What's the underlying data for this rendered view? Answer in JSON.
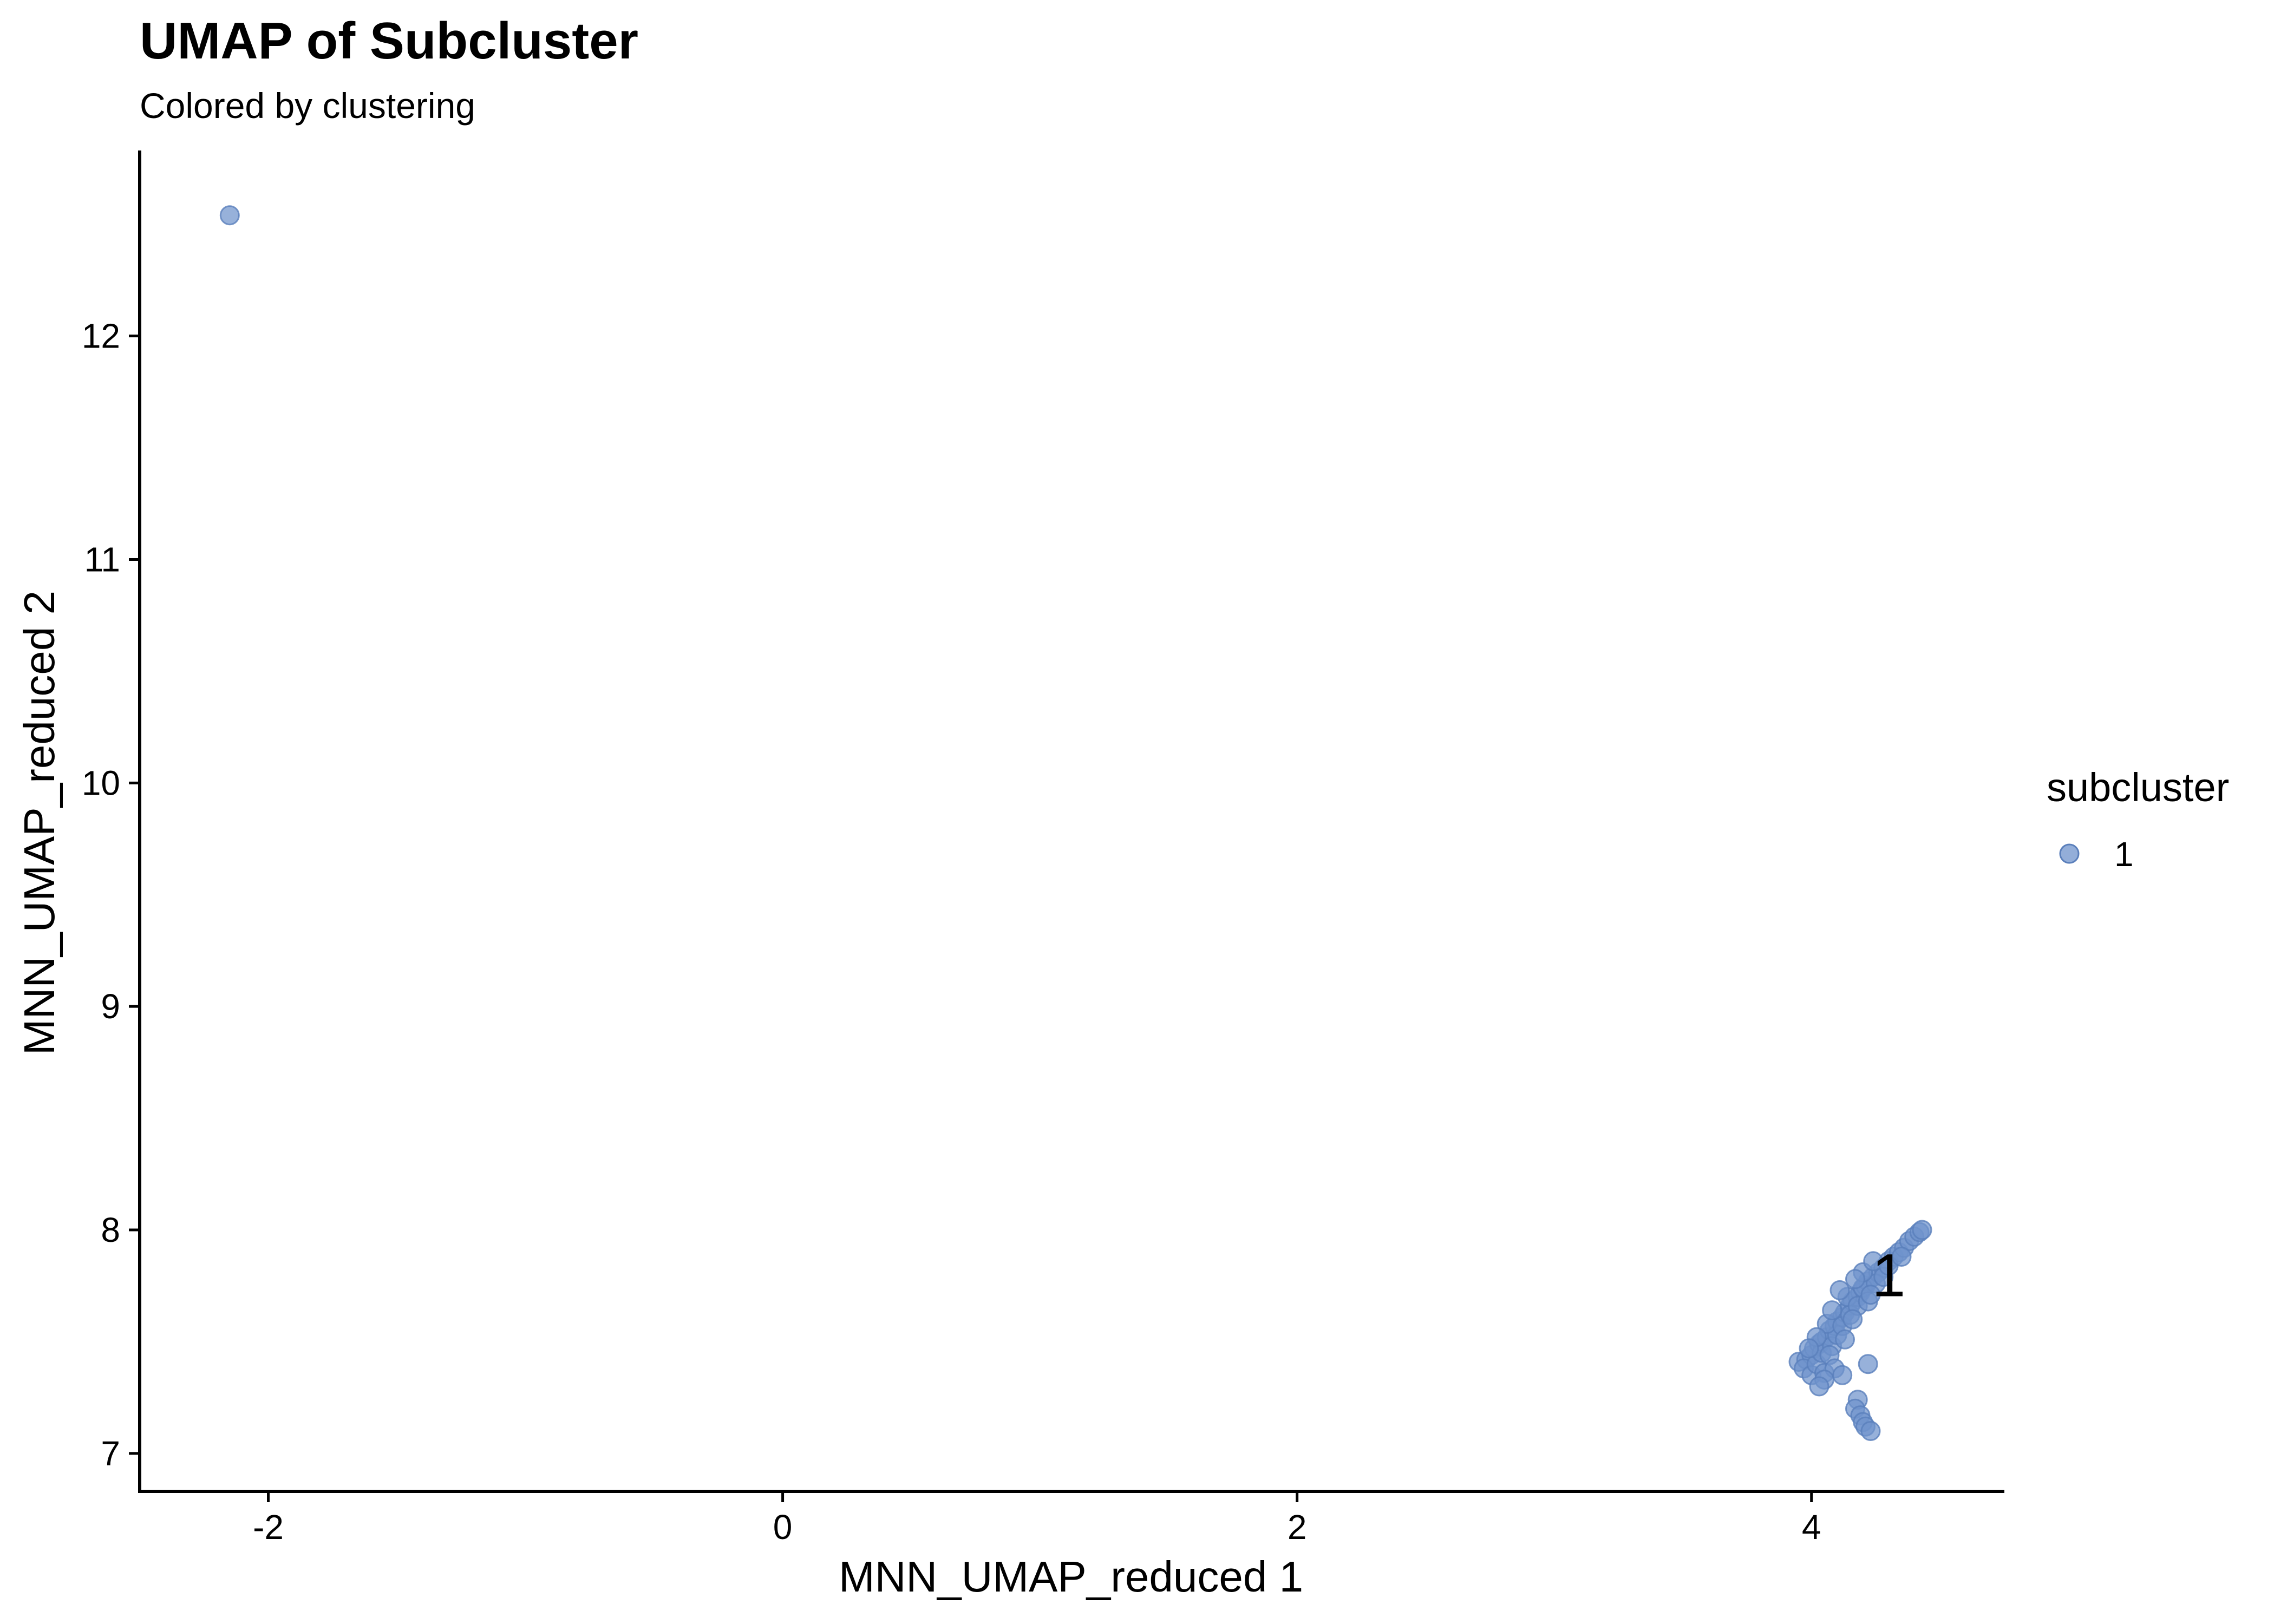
{
  "chart_data": {
    "type": "scatter",
    "title": "UMAP of Subcluster",
    "subtitle": "Colored by clustering",
    "xlabel": "MNN_UMAP_reduced 1",
    "ylabel": "MNN_UMAP_reduced 2",
    "xlim": [
      -2.5,
      4.75
    ],
    "ylim": [
      6.83,
      12.83
    ],
    "x_ticks": [
      -2,
      0,
      2,
      4
    ],
    "x_tick_labels": [
      "-2",
      "0",
      "2",
      "4"
    ],
    "y_ticks": [
      7,
      8,
      9,
      10,
      11,
      12
    ],
    "y_tick_labels": [
      "7",
      "8",
      "9",
      "10",
      "11",
      "12"
    ],
    "grid": false,
    "legend": {
      "title": "subcluster",
      "position": "right",
      "entries": [
        {
          "label": "1",
          "color": "#6f93cc"
        }
      ]
    },
    "cluster_labels": [
      {
        "text": "1",
        "x": 4.3,
        "y": 7.8
      }
    ],
    "series": [
      {
        "color": "#6f93cc",
        "points": [
          [
            -2.15,
            12.54
          ],
          [
            3.95,
            7.41
          ],
          [
            3.98,
            7.42
          ],
          [
            4.0,
            7.44
          ],
          [
            4.01,
            7.47
          ],
          [
            4.03,
            7.49
          ],
          [
            4.04,
            7.5
          ],
          [
            4.06,
            7.52
          ],
          [
            4.07,
            7.55
          ],
          [
            4.09,
            7.57
          ],
          [
            4.1,
            7.59
          ],
          [
            4.12,
            7.61
          ],
          [
            4.13,
            7.63
          ],
          [
            4.15,
            7.66
          ],
          [
            4.16,
            7.68
          ],
          [
            4.18,
            7.7
          ],
          [
            4.19,
            7.72
          ],
          [
            4.21,
            7.75
          ],
          [
            4.22,
            7.77
          ],
          [
            4.24,
            7.79
          ],
          [
            4.26,
            7.81
          ],
          [
            4.28,
            7.83
          ],
          [
            4.3,
            7.86
          ],
          [
            4.32,
            7.88
          ],
          [
            4.34,
            7.9
          ],
          [
            4.36,
            7.92
          ],
          [
            4.38,
            7.95
          ],
          [
            4.4,
            7.97
          ],
          [
            4.42,
            7.99
          ],
          [
            4.43,
            8.0
          ],
          [
            3.97,
            7.38
          ],
          [
            4.0,
            7.35
          ],
          [
            4.02,
            7.4
          ],
          [
            4.05,
            7.36
          ],
          [
            4.04,
            7.45
          ],
          [
            4.08,
            7.48
          ],
          [
            4.1,
            7.53
          ],
          [
            4.06,
            7.58
          ],
          [
            4.12,
            7.57
          ],
          [
            4.15,
            7.62
          ],
          [
            4.14,
            7.7
          ],
          [
            4.18,
            7.66
          ],
          [
            4.2,
            7.74
          ],
          [
            4.22,
            7.68
          ],
          [
            4.25,
            7.76
          ],
          [
            4.28,
            7.79
          ],
          [
            4.2,
            7.81
          ],
          [
            4.24,
            7.86
          ],
          [
            4.3,
            7.84
          ],
          [
            4.35,
            7.88
          ],
          [
            4.08,
            7.64
          ],
          [
            4.11,
            7.73
          ],
          [
            4.17,
            7.78
          ],
          [
            4.23,
            7.71
          ],
          [
            4.02,
            7.52
          ],
          [
            4.07,
            7.44
          ],
          [
            4.13,
            7.51
          ],
          [
            4.09,
            7.38
          ],
          [
            3.99,
            7.47
          ],
          [
            4.16,
            7.6
          ],
          [
            4.05,
            7.33
          ],
          [
            4.12,
            7.35
          ],
          [
            4.03,
            7.3
          ],
          [
            4.22,
            7.4
          ],
          [
            4.18,
            7.24
          ],
          [
            4.17,
            7.2
          ],
          [
            4.19,
            7.17
          ],
          [
            4.2,
            7.14
          ],
          [
            4.21,
            7.12
          ],
          [
            4.23,
            7.1
          ]
        ]
      }
    ]
  }
}
